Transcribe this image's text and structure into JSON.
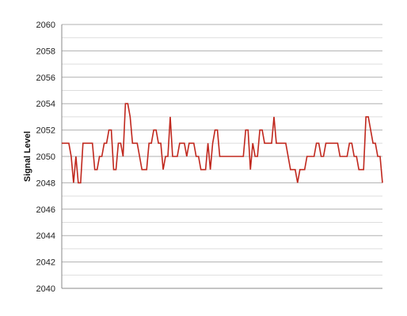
{
  "chart_data": {
    "type": "line",
    "title": "",
    "xlabel": "",
    "ylabel": "Signal Level",
    "ylim": [
      2040,
      2060
    ],
    "y_ticks": [
      "2040",
      "2042",
      "2044",
      "2046",
      "2048",
      "2050",
      "2052",
      "2054",
      "2056",
      "2058",
      "2060"
    ],
    "grid": "horizontal major and minor",
    "legend": "none",
    "colors": {
      "series": "#c0281e",
      "major_grid": "#b0b0b0",
      "minor_grid": "#dddddd",
      "axis": "#8a8a8a"
    },
    "series": [
      {
        "values": [
          2051,
          2051,
          2051,
          2051,
          2050,
          2048,
          2050,
          2048,
          2048,
          2051,
          2051,
          2051,
          2051,
          2051,
          2049,
          2049,
          2050,
          2050,
          2051,
          2051,
          2052,
          2052,
          2049,
          2049,
          2051,
          2051,
          2050,
          2054,
          2054,
          2053,
          2051,
          2051,
          2051,
          2050,
          2049,
          2049,
          2049,
          2051,
          2051,
          2052,
          2052,
          2051,
          2051,
          2049,
          2050,
          2050,
          2053,
          2050,
          2050,
          2050,
          2051,
          2051,
          2051,
          2050,
          2051,
          2051,
          2051,
          2050,
          2050,
          2049,
          2049,
          2049,
          2051,
          2049,
          2051,
          2052,
          2052,
          2050,
          2050,
          2050,
          2050,
          2050,
          2050,
          2050,
          2050,
          2050,
          2050,
          2050,
          2052,
          2052,
          2049,
          2051,
          2050,
          2050,
          2052,
          2052,
          2051,
          2051,
          2051,
          2051,
          2053,
          2051,
          2051,
          2051,
          2051,
          2051,
          2050,
          2049,
          2049,
          2049,
          2048,
          2049,
          2049,
          2049,
          2050,
          2050,
          2050,
          2050,
          2051,
          2051,
          2050,
          2050,
          2051,
          2051,
          2051,
          2051,
          2051,
          2051,
          2050,
          2050,
          2050,
          2050,
          2051,
          2051,
          2050,
          2050,
          2049,
          2049,
          2049,
          2053,
          2053,
          2052,
          2051,
          2051,
          2050,
          2050,
          2048
        ]
      }
    ]
  }
}
